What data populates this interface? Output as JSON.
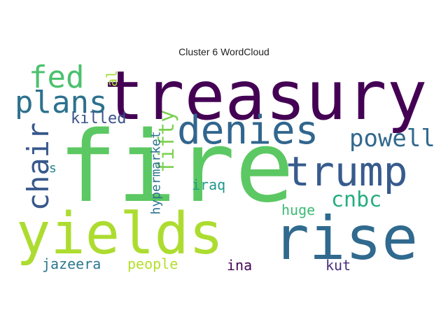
{
  "title": "Cluster 6 WordCloud",
  "words": [
    {
      "text": "treasury",
      "color": "#440154"
    },
    {
      "text": "fire",
      "color": "#5cc863"
    },
    {
      "text": "denies",
      "color": "#31668e"
    },
    {
      "text": "trump",
      "color": "#375b8d"
    },
    {
      "text": "rise",
      "color": "#306a8e"
    },
    {
      "text": "yields",
      "color": "#addc30"
    },
    {
      "text": "fed",
      "color": "#4ac16d"
    },
    {
      "text": "plans",
      "color": "#2d718e"
    },
    {
      "text": "chair",
      "color": "#38588c"
    },
    {
      "text": "powell",
      "color": "#31688e"
    },
    {
      "text": "cnbc",
      "color": "#26ad81"
    },
    {
      "text": "fifty",
      "color": "#7ad151"
    },
    {
      "text": "killed",
      "color": "#3b528b"
    },
    {
      "text": "hypermarket",
      "color": "#2c738e"
    },
    {
      "text": "iraq",
      "color": "#1f988b"
    },
    {
      "text": "huge",
      "color": "#3bbb75"
    },
    {
      "text": "jazeera",
      "color": "#2a788e"
    },
    {
      "text": "people",
      "color": "#b5de2b"
    },
    {
      "text": "ina",
      "color": "#450457"
    },
    {
      "text": "kut",
      "color": "#472f7d"
    },
    {
      "text": "al",
      "color": "#a2da37"
    },
    {
      "text": "s",
      "color": "#25838e"
    }
  ]
}
